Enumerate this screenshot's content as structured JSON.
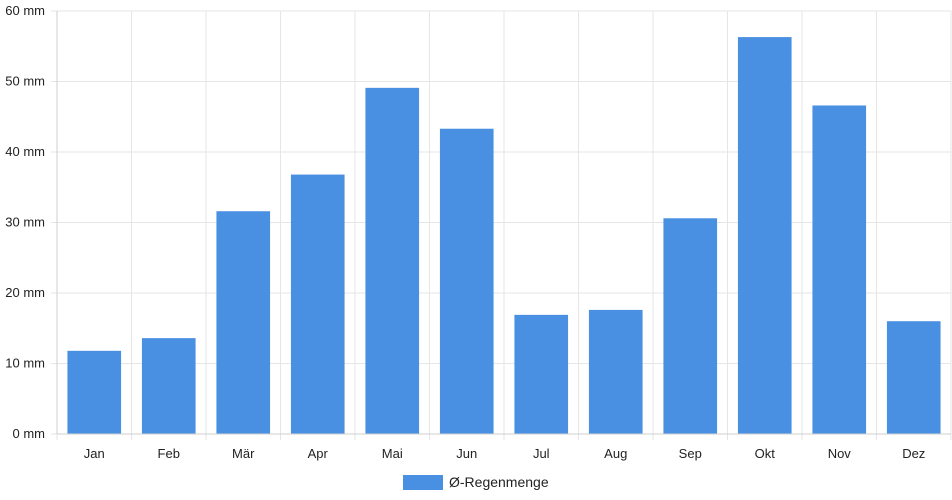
{
  "chart_data": {
    "type": "bar",
    "categories": [
      "Jan",
      "Feb",
      "Mär",
      "Apr",
      "Mai",
      "Jun",
      "Jul",
      "Aug",
      "Sep",
      "Okt",
      "Nov",
      "Dez"
    ],
    "series": [
      {
        "name": "Ø-Regenmenge",
        "values": [
          11.8,
          13.6,
          31.6,
          36.8,
          49.1,
          43.3,
          16.9,
          17.6,
          30.6,
          56.3,
          46.6,
          16.0
        ]
      }
    ],
    "y_ticks": [
      "0 mm",
      "10 mm",
      "20 mm",
      "30 mm",
      "40 mm",
      "50 mm",
      "60 mm"
    ],
    "ylim": [
      0,
      60
    ],
    "grid": true,
    "legend_position": "bottom",
    "colors": {
      "bar": "#4a90e2",
      "grid": "#e6e6e6",
      "axis": "#cfcfcf"
    }
  }
}
